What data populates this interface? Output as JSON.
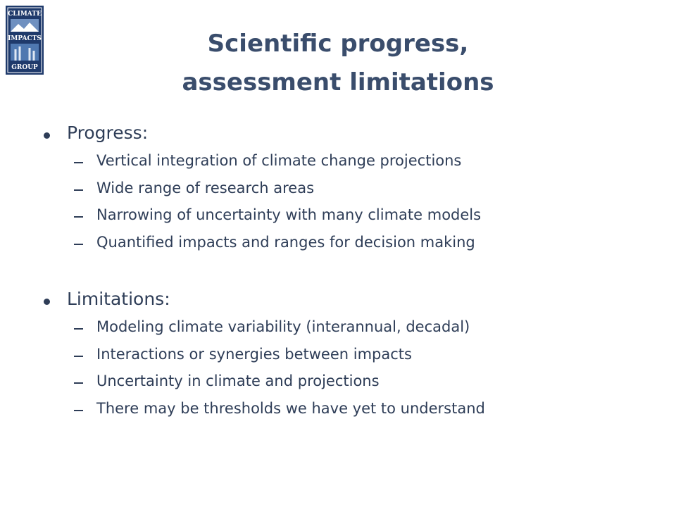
{
  "logo": {
    "lines": [
      "CLIMATE",
      "IMPACTS",
      "GROUP"
    ]
  },
  "title": {
    "lines": [
      "Scientific progress,",
      "assessment limitations"
    ]
  },
  "sections": [
    {
      "heading": "Progress:",
      "items": [
        "Vertical integration of climate change projections",
        "Wide range of research areas",
        "Narrowing of uncertainty with many climate models",
        "Quantified impacts and ranges for decision making"
      ]
    },
    {
      "heading": "Limitations:",
      "items": [
        "Modeling climate variability (interannual, decadal)",
        "Interactions or synergies between impacts",
        "Uncertainty in climate and projections",
        "There may be thresholds we have yet to understand"
      ]
    }
  ]
}
